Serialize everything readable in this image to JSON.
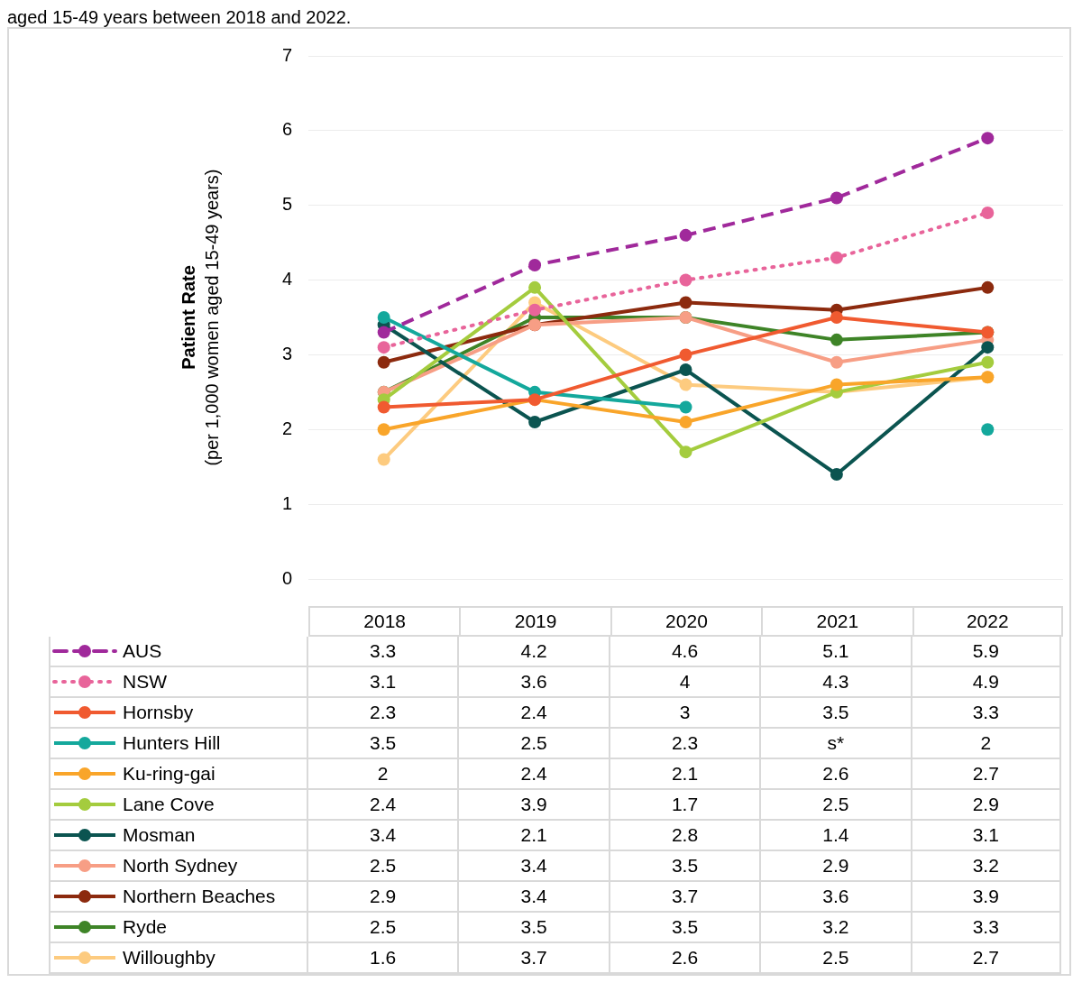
{
  "chart_data": {
    "type": "line",
    "title": "aged 15-49 years between 2018 and 2022.",
    "ylabel": "Patient Rate\n(per 1,000 women aged 15-49 years)",
    "categories": [
      "2018",
      "2019",
      "2020",
      "2021",
      "2022"
    ],
    "ylim": [
      0,
      7
    ],
    "yticks": [
      0,
      1,
      2,
      3,
      4,
      5,
      6,
      7
    ],
    "grid": "y",
    "marker": "circle",
    "data_labels": true,
    "legend": "bottom",
    "series": [
      {
        "name": "AUS",
        "color": "#a0299b",
        "line_style": "dashed",
        "values": [
          3.3,
          4.2,
          4.6,
          5.1,
          5.9
        ]
      },
      {
        "name": "NSW",
        "color": "#e8649a",
        "line_style": "dotted",
        "values": [
          3.1,
          3.6,
          4,
          4.3,
          4.9
        ]
      },
      {
        "name": "Hornsby",
        "color": "#f05a30",
        "values": [
          2.3,
          2.4,
          3,
          3.5,
          3.3
        ]
      },
      {
        "name": "Hunters Hill",
        "color": "#14a89c",
        "values": [
          3.5,
          2.5,
          2.3,
          null,
          2
        ],
        "value_labels": [
          "3.5",
          "2.5",
          "2.3",
          "s*",
          "2"
        ]
      },
      {
        "name": "Ku-ring-gai",
        "color": "#f9a52a",
        "values": [
          2,
          2.4,
          2.1,
          2.6,
          2.7
        ]
      },
      {
        "name": "Lane Cove",
        "color": "#a4cc3e",
        "values": [
          2.4,
          3.9,
          1.7,
          2.5,
          2.9
        ]
      },
      {
        "name": "Mosman",
        "color": "#0b5450",
        "values": [
          3.4,
          2.1,
          2.8,
          1.4,
          3.1
        ]
      },
      {
        "name": "North Sydney",
        "color": "#f79e85",
        "values": [
          2.5,
          3.4,
          3.5,
          2.9,
          3.2
        ]
      },
      {
        "name": "Northern Beaches",
        "color": "#8c2a0e",
        "values": [
          2.9,
          3.4,
          3.7,
          3.6,
          3.9
        ]
      },
      {
        "name": "Ryde",
        "color": "#3e8427",
        "values": [
          2.5,
          3.5,
          3.5,
          3.2,
          3.3
        ]
      },
      {
        "name": "Willoughby",
        "color": "#fdcb7f",
        "values": [
          1.6,
          3.7,
          2.6,
          2.5,
          2.7
        ]
      }
    ]
  }
}
